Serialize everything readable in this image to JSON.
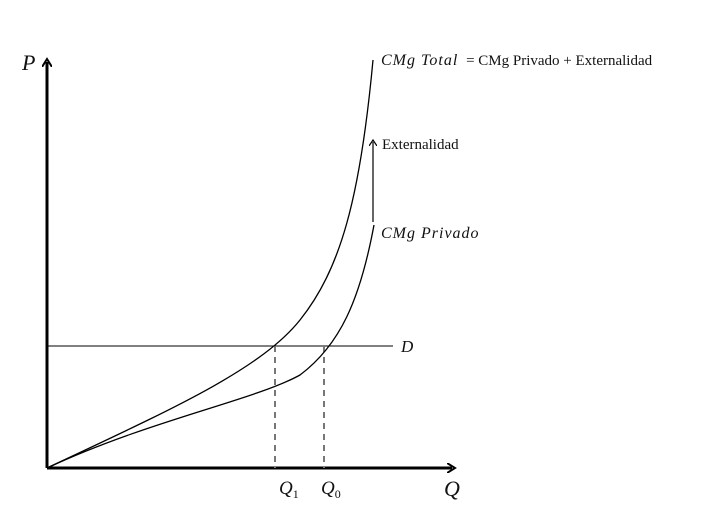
{
  "axes": {
    "y_label": "P",
    "x_label": "Q"
  },
  "curves": {
    "total_name": "CMg Total",
    "total_definition": "= CMg Privado + Externalidad",
    "private_name": "CMg Privado",
    "externality": "Externalidad",
    "demand": "D"
  },
  "quantities": {
    "q1": {
      "base": "Q",
      "sub": "1"
    },
    "q0": {
      "base": "Q",
      "sub": "0"
    }
  }
}
